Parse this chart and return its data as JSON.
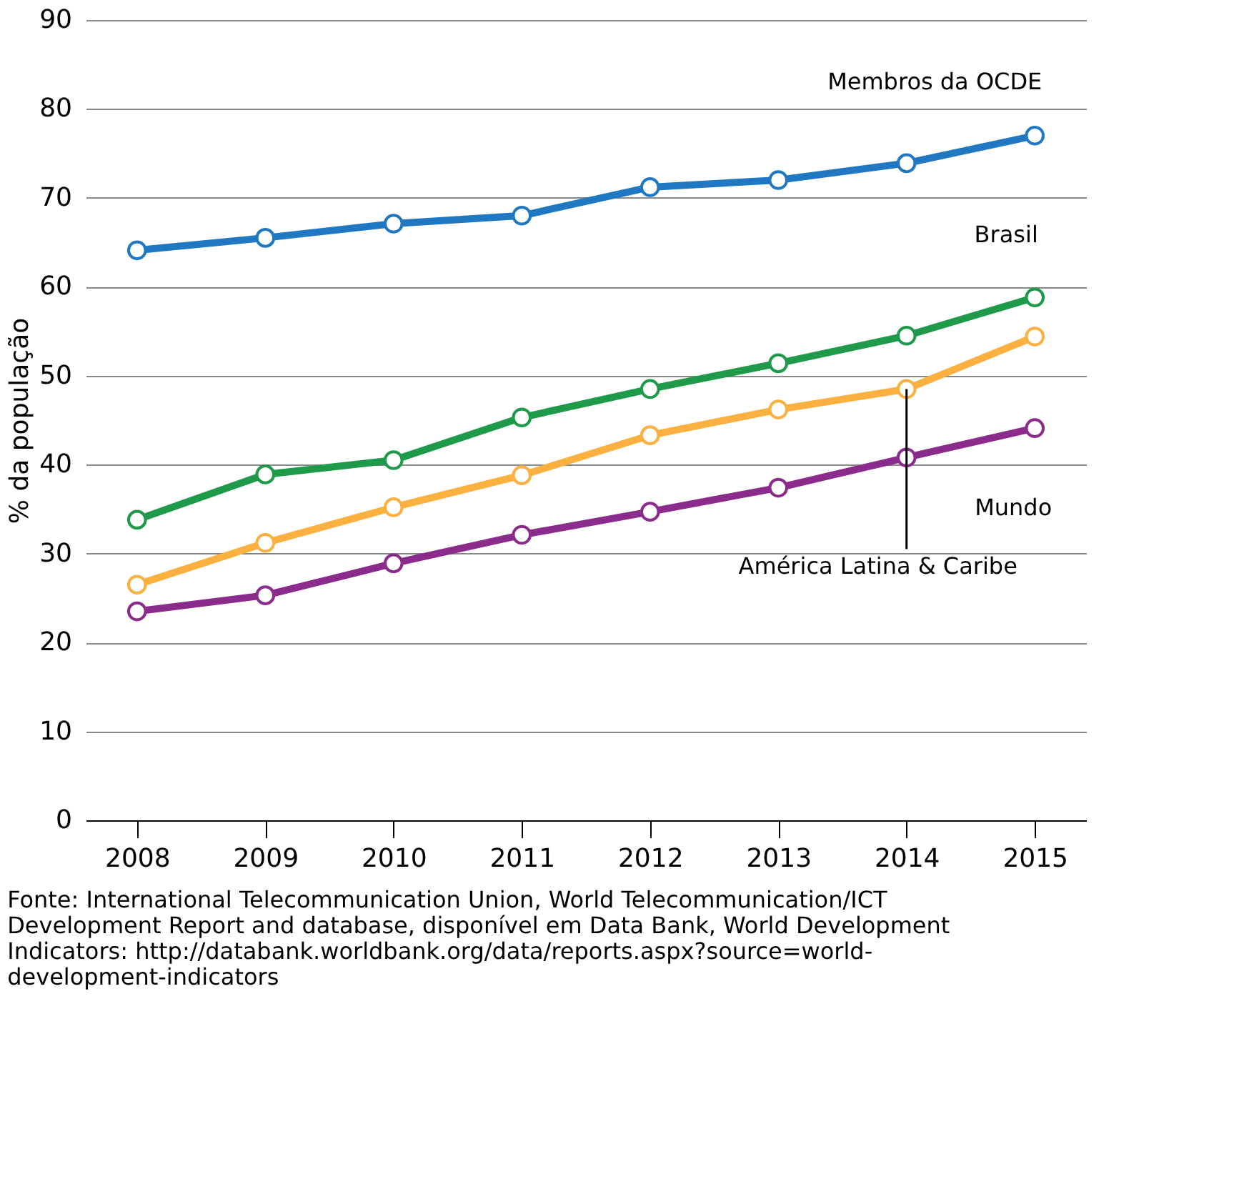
{
  "chart_data": {
    "type": "line",
    "ylabel": "% da população",
    "categories": [
      "2008",
      "2009",
      "2010",
      "2011",
      "2012",
      "2013",
      "2014",
      "2015"
    ],
    "series": [
      {
        "name": "Membros da OCDE",
        "color": "#1f78c1",
        "values": [
          64.1,
          65.5,
          67.1,
          68,
          71.2,
          72,
          73.9,
          77
        ]
      },
      {
        "name": "Brasil",
        "color": "#1f9a4b",
        "values": [
          33.8,
          38.9,
          40.5,
          45.3,
          48.5,
          51.4,
          54.5,
          58.8
        ]
      },
      {
        "name": "América Latina & Caribe",
        "color": "#fbb040",
        "values": [
          26.5,
          31.2,
          35.2,
          38.8,
          43.3,
          46.2,
          48.5,
          54.4
        ]
      },
      {
        "name": "Mundo",
        "color": "#8b2c8c",
        "values": [
          23.5,
          25.3,
          28.9,
          32.1,
          34.7,
          37.4,
          40.8,
          44.1
        ]
      }
    ],
    "ylim": [
      0,
      90
    ],
    "yticks": [
      0,
      10,
      20,
      30,
      40,
      50,
      60,
      70,
      80,
      90
    ],
    "grid": "y",
    "legend": false,
    "marker": "circle",
    "line_style": "solid",
    "annotations": [
      "Fonte: International Telecommunication Union, World Telecommunication/ICT Development Report and database, disponível em Data Bank, World Development Indicators: http://databank.worldbank.org/data/reports.aspx?source=world-development-indicators"
    ]
  }
}
